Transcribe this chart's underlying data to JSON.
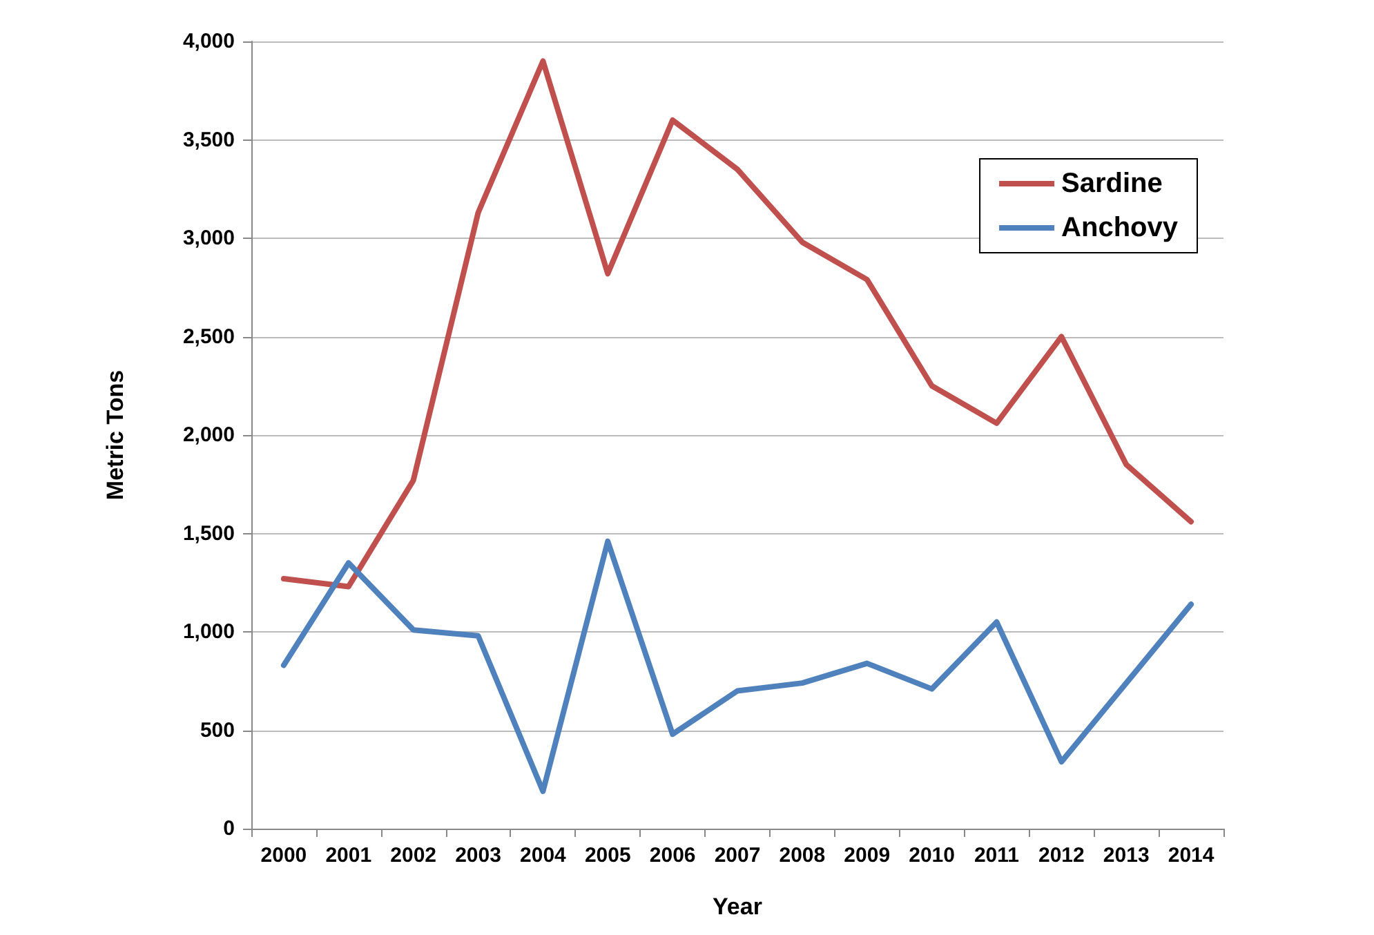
{
  "chart_data": {
    "type": "line",
    "xlabel": "Year",
    "ylabel": "Metric Tons",
    "categories": [
      "2000",
      "2001",
      "2002",
      "2003",
      "2004",
      "2005",
      "2006",
      "2007",
      "2008",
      "2009",
      "2010",
      "2011",
      "2012",
      "2013",
      "2014"
    ],
    "series": [
      {
        "name": "Sardine",
        "color": "#c0504d",
        "values": [
          1270,
          1230,
          1770,
          3130,
          3900,
          2820,
          3600,
          3350,
          2980,
          2790,
          2250,
          2060,
          2500,
          1850,
          1560
        ]
      },
      {
        "name": "Anchovy",
        "color": "#4f81bd",
        "values": [
          830,
          1350,
          1010,
          980,
          190,
          1460,
          480,
          700,
          740,
          840,
          710,
          1050,
          340,
          740,
          1140
        ]
      }
    ],
    "ylim": [
      0,
      4000
    ],
    "yticks": [
      {
        "value": 0,
        "label": "0"
      },
      {
        "value": 500,
        "label": "500"
      },
      {
        "value": 1000,
        "label": "1,000"
      },
      {
        "value": 1500,
        "label": "1,500"
      },
      {
        "value": 2000,
        "label": "2,000"
      },
      {
        "value": 2500,
        "label": "2,500"
      },
      {
        "value": 3000,
        "label": "3,000"
      },
      {
        "value": 3500,
        "label": "3,500"
      },
      {
        "value": 4000,
        "label": "4,000"
      }
    ],
    "grid": "y",
    "legend": "top right",
    "marker": "none",
    "line_style": "solid"
  }
}
